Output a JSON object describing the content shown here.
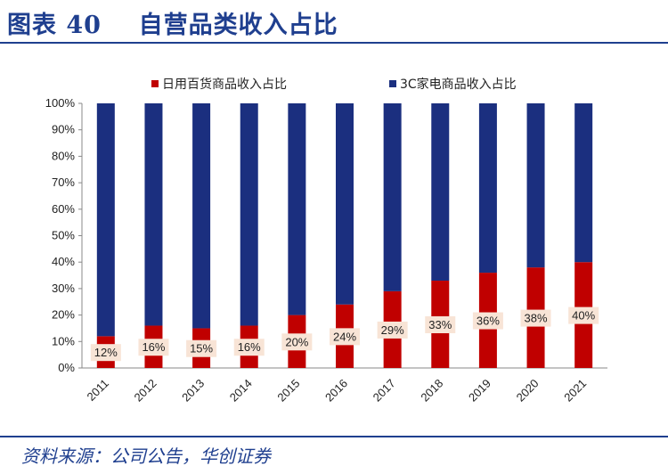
{
  "figure": {
    "title": "图表 40    自营品类收入占比",
    "source": "资料来源：公司公告，华创证券"
  },
  "colors": {
    "title_blue": "#1f3f8f",
    "series_daily": "#c00000",
    "series_3c": "#1b2f7f",
    "label_bg": "#f8e4d6"
  },
  "chart_data": {
    "type": "bar",
    "stacked": true,
    "categories": [
      "2011",
      "2012",
      "2013",
      "2014",
      "2015",
      "2016",
      "2017",
      "2018",
      "2019",
      "2020",
      "2021"
    ],
    "series": [
      {
        "name": "日用百货商品收入占比",
        "values": [
          12,
          16,
          15,
          16,
          20,
          24,
          29,
          33,
          36,
          38,
          40
        ]
      },
      {
        "name": "3C家电商品收入占比",
        "values": [
          88,
          84,
          85,
          84,
          80,
          76,
          71,
          67,
          64,
          62,
          60
        ]
      }
    ],
    "data_labels": [
      "12%",
      "16%",
      "15%",
      "16%",
      "20%",
      "24%",
      "29%",
      "33%",
      "36%",
      "38%",
      "40%"
    ],
    "y_ticks": [
      "0%",
      "10%",
      "20%",
      "30%",
      "40%",
      "50%",
      "60%",
      "70%",
      "80%",
      "90%",
      "100%"
    ],
    "ylim": [
      0,
      100
    ],
    "grid": false,
    "legend_position": "top"
  }
}
